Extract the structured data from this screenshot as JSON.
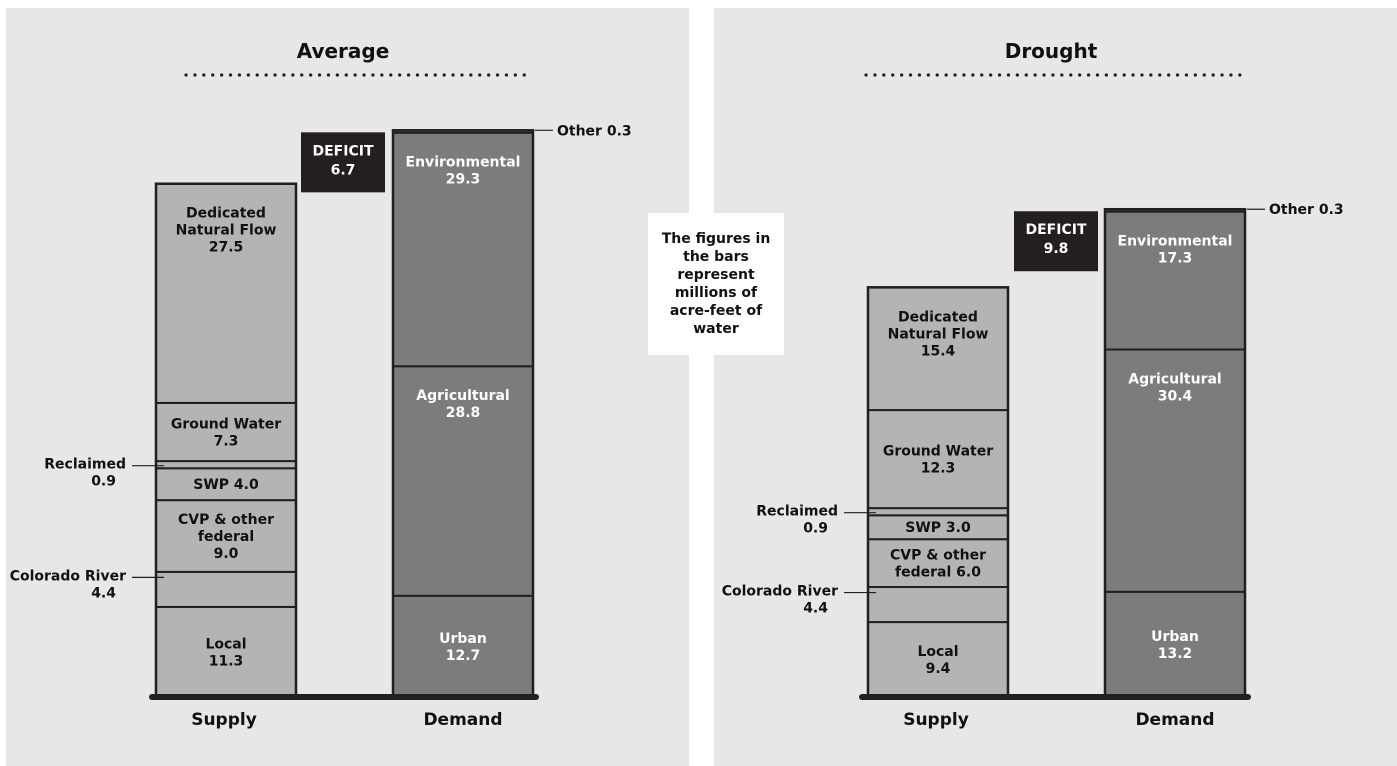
{
  "chart_data": [
    {
      "type": "bar",
      "title": "Average",
      "categories": [
        "Supply",
        "Demand"
      ],
      "supply": [
        {
          "name": "Local",
          "label": "Local",
          "value": 11.3,
          "display": "11.3"
        },
        {
          "name": "Colorado River",
          "label": "Colorado River",
          "value": 4.4,
          "display": "4.4",
          "callout": true
        },
        {
          "name": "CVP & other federal",
          "label": "CVP & other\nfederal",
          "value": 9.0,
          "display": "9.0"
        },
        {
          "name": "SWP",
          "label": "SWP 4.0",
          "value": 4.0,
          "display": ""
        },
        {
          "name": "Reclaimed",
          "label": "Reclaimed",
          "value": 0.9,
          "display": "0.9",
          "callout": true
        },
        {
          "name": "Ground Water",
          "label": "Ground Water",
          "value": 7.3,
          "display": "7.3"
        },
        {
          "name": "Dedicated Natural Flow",
          "label": "Dedicated\nNatural Flow",
          "value": 27.5,
          "display": "27.5"
        }
      ],
      "demand": [
        {
          "name": "Urban",
          "label": "Urban",
          "value": 12.7,
          "display": "12.7"
        },
        {
          "name": "Agricultural",
          "label": "Agricultural",
          "value": 28.8,
          "display": "28.8"
        },
        {
          "name": "Environmental",
          "label": "Environmental",
          "value": 29.3,
          "display": "29.3"
        },
        {
          "name": "Other",
          "label": "Other 0.3",
          "value": 0.3,
          "display": "",
          "callout": true
        }
      ],
      "deficit": {
        "label": "DEFICIT",
        "value": 6.7,
        "display": "6.7"
      }
    },
    {
      "type": "bar",
      "title": "Drought",
      "categories": [
        "Supply",
        "Demand"
      ],
      "supply": [
        {
          "name": "Local",
          "label": "Local",
          "value": 9.4,
          "display": "9.4"
        },
        {
          "name": "Colorado River",
          "label": "Colorado River",
          "value": 4.4,
          "display": "4.4",
          "callout": true
        },
        {
          "name": "CVP & other federal",
          "label": "CVP & other\nfederal 6.0",
          "value": 6.0,
          "display": ""
        },
        {
          "name": "SWP",
          "label": "SWP 3.0",
          "value": 3.0,
          "display": ""
        },
        {
          "name": "Reclaimed",
          "label": "Reclaimed",
          "value": 0.9,
          "display": "0.9",
          "callout": true
        },
        {
          "name": "Ground Water",
          "label": "Ground Water",
          "value": 12.3,
          "display": "12.3"
        },
        {
          "name": "Dedicated Natural Flow",
          "label": "Dedicated\nNatural Flow",
          "value": 15.4,
          "display": "15.4"
        }
      ],
      "demand": [
        {
          "name": "Urban",
          "label": "Urban",
          "value": 13.2,
          "display": "13.2"
        },
        {
          "name": "Agricultural",
          "label": "Agricultural",
          "value": 30.4,
          "display": "30.4"
        },
        {
          "name": "Environmental",
          "label": "Environmental",
          "value": 17.3,
          "display": "17.3"
        },
        {
          "name": "Other",
          "label": "Other 0.3",
          "value": 0.3,
          "display": "",
          "callout": true
        }
      ],
      "deficit": {
        "label": "DEFICIT",
        "value": 9.8,
        "display": "9.8"
      }
    }
  ],
  "note": "The figures in the bars represent millions of acre-feet of water",
  "colors": {
    "panel": "#e6e7e6",
    "supply": "#b3b4b4",
    "demand": "#7b7c7e",
    "deficit": "#231f20",
    "outline": "#231f20"
  }
}
